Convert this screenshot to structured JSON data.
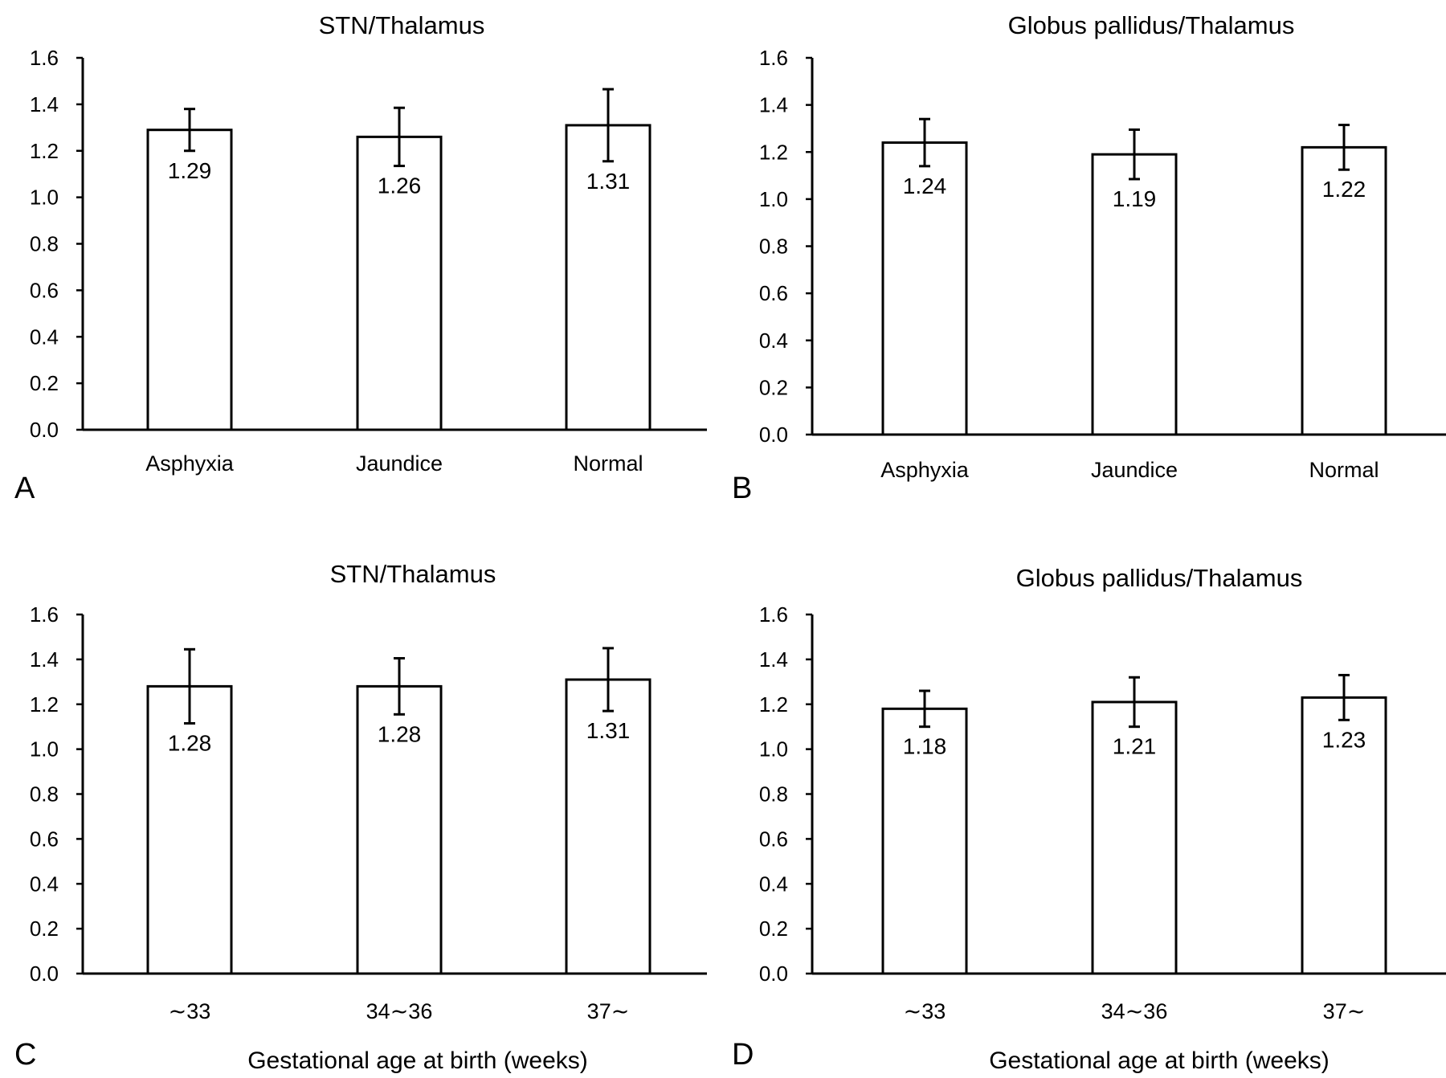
{
  "chart_data": [
    {
      "type": "bar",
      "panel_label": "A",
      "title": "STN/Thalamus",
      "xlabel": "",
      "ylabel": "",
      "categories": [
        "Asphyxia",
        "Jaundice",
        "Normal"
      ],
      "values": [
        1.29,
        1.26,
        1.31
      ],
      "errors": [
        0.09,
        0.125,
        0.155
      ],
      "data_labels": [
        "1.29",
        "1.26",
        "1.31"
      ],
      "ylim": [
        0,
        1.6
      ],
      "yticks": [
        "0.0",
        "0.2",
        "0.4",
        "0.6",
        "0.8",
        "1.0",
        "1.2",
        "1.4",
        "1.6"
      ],
      "grid": false,
      "legend": "none"
    },
    {
      "type": "bar",
      "panel_label": "B",
      "title": "Globus pallidus/Thalamus",
      "xlabel": "",
      "ylabel": "",
      "categories": [
        "Asphyxia",
        "Jaundice",
        "Normal"
      ],
      "values": [
        1.24,
        1.19,
        1.22
      ],
      "errors": [
        0.1,
        0.105,
        0.095
      ],
      "data_labels": [
        "1.24",
        "1.19",
        "1.22"
      ],
      "ylim": [
        0,
        1.6
      ],
      "yticks": [
        "0.0",
        "0.2",
        "0.4",
        "0.6",
        "0.8",
        "1.0",
        "1.2",
        "1.4",
        "1.6"
      ],
      "grid": false,
      "legend": "none"
    },
    {
      "type": "bar",
      "panel_label": "C",
      "title": "STN/Thalamus",
      "xlabel": "Gestational age at birth (weeks)",
      "ylabel": "",
      "categories": [
        "∼33",
        "34∼36",
        "37∼"
      ],
      "values": [
        1.28,
        1.28,
        1.31
      ],
      "errors": [
        0.165,
        0.125,
        0.14
      ],
      "data_labels": [
        "1.28",
        "1.28",
        "1.31"
      ],
      "ylim": [
        0,
        1.6
      ],
      "yticks": [
        "0.0",
        "0.2",
        "0.4",
        "0.6",
        "0.8",
        "1.0",
        "1.2",
        "1.4",
        "1.6"
      ],
      "grid": false,
      "legend": "none"
    },
    {
      "type": "bar",
      "panel_label": "D",
      "title": "Globus pallidus/Thalamus",
      "xlabel": "Gestational age at birth (weeks)",
      "ylabel": "",
      "categories": [
        "∼33",
        "34∼36",
        "37∼"
      ],
      "values": [
        1.18,
        1.21,
        1.23
      ],
      "errors": [
        0.08,
        0.11,
        0.1
      ],
      "data_labels": [
        "1.18",
        "1.21",
        "1.23"
      ],
      "ylim": [
        0,
        1.6
      ],
      "yticks": [
        "0.0",
        "0.2",
        "0.4",
        "0.6",
        "0.8",
        "1.0",
        "1.2",
        "1.4",
        "1.6"
      ],
      "grid": false,
      "legend": "none"
    }
  ]
}
